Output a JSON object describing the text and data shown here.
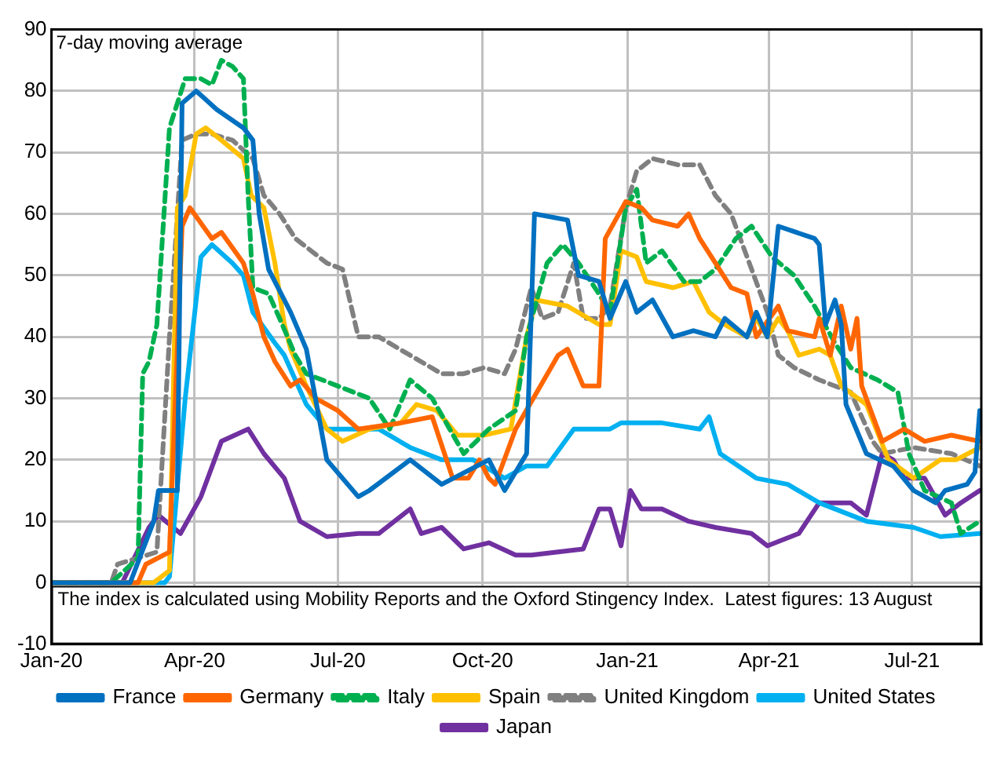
{
  "chart_data": {
    "type": "line",
    "annotations": [
      "7-day moving average",
      "The index is calculated using Mobility Reports and the Oxford Stingency Index.  Latest figures: 13 August"
    ],
    "xlim": [
      "2020-01-01",
      "2021-08-14"
    ],
    "xticks": [
      {
        "value": "2020-01-01",
        "label": "Jan-20"
      },
      {
        "value": "2020-04-01",
        "label": "Apr-20"
      },
      {
        "value": "2020-07-01",
        "label": "Jul-20"
      },
      {
        "value": "2020-10-01",
        "label": "Oct-20"
      },
      {
        "value": "2021-01-01",
        "label": "Jan-21"
      },
      {
        "value": "2021-04-01",
        "label": "Apr-21"
      },
      {
        "value": "2021-07-01",
        "label": "Jul-21"
      }
    ],
    "ylim": [
      -10,
      90
    ],
    "yticks": [
      -10,
      0,
      10,
      20,
      30,
      40,
      50,
      60,
      70,
      80,
      90
    ],
    "grid": true,
    "legend": "bottom",
    "marker": "none",
    "series": [
      {
        "name": "France",
        "color": "#0070c0",
        "line_style": "solid",
        "x": [
          "2020-01-01",
          "2020-02-20",
          "2020-03-06",
          "2020-03-09",
          "2020-03-21",
          "2020-03-24",
          "2020-04-02",
          "2020-04-15",
          "2020-05-02",
          "2020-05-08",
          "2020-05-12",
          "2020-05-18",
          "2020-06-01",
          "2020-06-11",
          "2020-06-24",
          "2020-07-14",
          "2020-07-21",
          "2020-08-16",
          "2020-09-05",
          "2020-10-05",
          "2020-10-15",
          "2020-10-29",
          "2020-11-03",
          "2020-11-24",
          "2020-12-01",
          "2020-12-14",
          "2020-12-21",
          "2020-12-31",
          "2021-01-07",
          "2021-01-17",
          "2021-01-30",
          "2021-02-12",
          "2021-02-26",
          "2021-03-04",
          "2021-03-18",
          "2021-03-24",
          "2021-03-31",
          "2021-04-07",
          "2021-04-30",
          "2021-05-03",
          "2021-05-07",
          "2021-05-13",
          "2021-05-17",
          "2021-05-20",
          "2021-06-02",
          "2021-06-19",
          "2021-07-02",
          "2021-07-16",
          "2021-07-22",
          "2021-08-05",
          "2021-08-10",
          "2021-08-13"
        ],
        "values": [
          0,
          0,
          10,
          15,
          15,
          78,
          80,
          77,
          74,
          72,
          60,
          51,
          44,
          38,
          20,
          14,
          15,
          20,
          16,
          20,
          15,
          21,
          60,
          59,
          50,
          49,
          43,
          49,
          44,
          46,
          40,
          41,
          40,
          43,
          40,
          44,
          40,
          58,
          56,
          55,
          42,
          46,
          42,
          29,
          21,
          19,
          15,
          13,
          15,
          16,
          18,
          28
        ]
      },
      {
        "name": "Germany",
        "color": "#ff6600",
        "line_style": "solid",
        "x": [
          "2020-01-01",
          "2020-02-25",
          "2020-03-01",
          "2020-03-16",
          "2020-03-24",
          "2020-03-29",
          "2020-04-12",
          "2020-04-18",
          "2020-05-02",
          "2020-05-08",
          "2020-05-15",
          "2020-05-22",
          "2020-06-01",
          "2020-06-07",
          "2020-06-17",
          "2020-07-01",
          "2020-07-14",
          "2020-08-10",
          "2020-08-30",
          "2020-09-12",
          "2020-09-22",
          "2020-09-29",
          "2020-10-05",
          "2020-10-09",
          "2020-10-22",
          "2020-11-18",
          "2020-11-24",
          "2020-12-04",
          "2020-12-14",
          "2020-12-18",
          "2020-12-31",
          "2021-01-10",
          "2021-01-17",
          "2021-02-02",
          "2021-02-09",
          "2021-02-16",
          "2021-02-26",
          "2021-03-08",
          "2021-03-18",
          "2021-03-24",
          "2021-04-07",
          "2021-04-13",
          "2021-04-30",
          "2021-05-03",
          "2021-05-10",
          "2021-05-17",
          "2021-05-23",
          "2021-05-27",
          "2021-05-30",
          "2021-06-12",
          "2021-06-26",
          "2021-07-09",
          "2021-07-26",
          "2021-08-13"
        ],
        "values": [
          0,
          0,
          3,
          5,
          58,
          61,
          56,
          57,
          52,
          47,
          40,
          36,
          32,
          33,
          30,
          28,
          25,
          26,
          27,
          17,
          17,
          20,
          17,
          16,
          25,
          37,
          38,
          32,
          32,
          56,
          62,
          61,
          59,
          58,
          60,
          56,
          52,
          48,
          47,
          40,
          45,
          41,
          40,
          43,
          37,
          45,
          38,
          43,
          32,
          23,
          25,
          23,
          24,
          23
        ]
      },
      {
        "name": "Italy",
        "color": "#00b050",
        "line_style": "dashed",
        "x": [
          "2020-01-01",
          "2020-02-08",
          "2020-02-25",
          "2020-02-28",
          "2020-03-03",
          "2020-03-08",
          "2020-03-16",
          "2020-03-26",
          "2020-04-05",
          "2020-04-12",
          "2020-04-18",
          "2020-04-25",
          "2020-05-02",
          "2020-05-05",
          "2020-05-08",
          "2020-05-18",
          "2020-05-25",
          "2020-06-04",
          "2020-06-11",
          "2020-07-01",
          "2020-07-21",
          "2020-08-03",
          "2020-08-16",
          "2020-08-30",
          "2020-09-19",
          "2020-10-05",
          "2020-10-22",
          "2020-10-29",
          "2020-11-11",
          "2020-11-21",
          "2020-12-01",
          "2020-12-14",
          "2020-12-21",
          "2020-12-31",
          "2021-01-07",
          "2021-01-13",
          "2021-01-23",
          "2021-02-06",
          "2021-02-16",
          "2021-02-26",
          "2021-03-11",
          "2021-03-21",
          "2021-04-03",
          "2021-04-17",
          "2021-04-30",
          "2021-05-13",
          "2021-05-23",
          "2021-06-09",
          "2021-06-22",
          "2021-06-29",
          "2021-07-09",
          "2021-07-26",
          "2021-08-01",
          "2021-08-13"
        ],
        "values": [
          0,
          0,
          4,
          34,
          36,
          42,
          74,
          82,
          82,
          81,
          85,
          84,
          82,
          63,
          48,
          47,
          43,
          37,
          34,
          32,
          30,
          25,
          33,
          30,
          21,
          25,
          28,
          40,
          52,
          55,
          52,
          47,
          44,
          61,
          64,
          52,
          54,
          49,
          49,
          51,
          56,
          58,
          53,
          50,
          45,
          39,
          35,
          33,
          31,
          21,
          15,
          13,
          8,
          10
        ]
      },
      {
        "name": "Spain",
        "color": "#ffc000",
        "line_style": "solid",
        "x": [
          "2020-01-01",
          "2020-03-06",
          "2020-03-16",
          "2020-03-21",
          "2020-03-26",
          "2020-04-02",
          "2020-04-08",
          "2020-04-18",
          "2020-05-02",
          "2020-05-07",
          "2020-05-15",
          "2020-05-22",
          "2020-05-28",
          "2020-06-01",
          "2020-06-11",
          "2020-06-24",
          "2020-07-04",
          "2020-07-21",
          "2020-08-10",
          "2020-08-20",
          "2020-09-02",
          "2020-09-15",
          "2020-10-02",
          "2020-10-19",
          "2020-10-29",
          "2020-11-04",
          "2020-11-24",
          "2020-12-14",
          "2020-12-21",
          "2020-12-28",
          "2021-01-07",
          "2021-01-13",
          "2021-01-30",
          "2021-02-12",
          "2021-02-22",
          "2021-03-04",
          "2021-03-18",
          "2021-03-24",
          "2021-03-31",
          "2021-04-07",
          "2021-04-13",
          "2021-04-20",
          "2021-05-03",
          "2021-05-10",
          "2021-05-17",
          "2021-06-02",
          "2021-06-16",
          "2021-07-02",
          "2021-07-19",
          "2021-07-29",
          "2021-08-13"
        ],
        "values": [
          0,
          0,
          2,
          61,
          63,
          73,
          74,
          72,
          69,
          63,
          61,
          52,
          42,
          38,
          32,
          25,
          23,
          25,
          26,
          29,
          28,
          24,
          24,
          25,
          40,
          46,
          45,
          42,
          42,
          54,
          53,
          49,
          48,
          49,
          44,
          42,
          40,
          43,
          40,
          43,
          41,
          37,
          38,
          37,
          32,
          29,
          20,
          17,
          20,
          20,
          22
        ]
      },
      {
        "name": "United Kingdom",
        "color": "#808080",
        "line_style": "dashed",
        "x": [
          "2020-01-01",
          "2020-02-08",
          "2020-02-12",
          "2020-03-08",
          "2020-03-16",
          "2020-03-24",
          "2020-04-02",
          "2020-04-12",
          "2020-04-25",
          "2020-05-08",
          "2020-05-15",
          "2020-05-25",
          "2020-06-04",
          "2020-06-24",
          "2020-07-04",
          "2020-07-14",
          "2020-07-27",
          "2020-08-16",
          "2020-09-05",
          "2020-09-19",
          "2020-10-02",
          "2020-10-15",
          "2020-10-22",
          "2020-11-01",
          "2020-11-08",
          "2020-11-18",
          "2020-11-28",
          "2020-12-04",
          "2020-12-14",
          "2020-12-21",
          "2020-12-31",
          "2021-01-07",
          "2021-01-17",
          "2021-02-02",
          "2021-02-16",
          "2021-02-26",
          "2021-03-08",
          "2021-03-21",
          "2021-03-31",
          "2021-04-07",
          "2021-04-17",
          "2021-05-03",
          "2021-05-23",
          "2021-06-06",
          "2021-06-12",
          "2021-07-02",
          "2021-07-26",
          "2021-08-13"
        ],
        "values": [
          0,
          0,
          3,
          5,
          40,
          72,
          73,
          73,
          72,
          69,
          63,
          60,
          56,
          52,
          51,
          40,
          40,
          37,
          34,
          34,
          35,
          34,
          38,
          48,
          43,
          44,
          52,
          43,
          43,
          45,
          61,
          67,
          69,
          68,
          68,
          63,
          60,
          51,
          44,
          37,
          35,
          33,
          31,
          23,
          21,
          22,
          21,
          19
        ]
      },
      {
        "name": "United States",
        "color": "#00b0f0",
        "line_style": "solid",
        "x": [
          "2020-01-01",
          "2020-03-13",
          "2020-03-16",
          "2020-03-26",
          "2020-04-05",
          "2020-04-12",
          "2020-04-25",
          "2020-05-02",
          "2020-05-08",
          "2020-05-22",
          "2020-05-28",
          "2020-06-11",
          "2020-06-24",
          "2020-07-07",
          "2020-07-27",
          "2020-08-16",
          "2020-09-05",
          "2020-09-25",
          "2020-10-15",
          "2020-10-29",
          "2020-11-11",
          "2020-11-28",
          "2020-12-21",
          "2020-12-28",
          "2021-01-23",
          "2021-02-16",
          "2021-02-22",
          "2021-03-01",
          "2021-03-24",
          "2021-04-13",
          "2021-05-03",
          "2021-06-02",
          "2021-07-02",
          "2021-07-19",
          "2021-08-13"
        ],
        "values": [
          0,
          0,
          1,
          30,
          53,
          55,
          52,
          50,
          44,
          39,
          37,
          29,
          25,
          25,
          25,
          22,
          20,
          20,
          17,
          19,
          19,
          25,
          25,
          26,
          26,
          25,
          27,
          21,
          17,
          16,
          13,
          10,
          9,
          7.5,
          8
        ]
      },
      {
        "name": "Japan",
        "color": "#7030a0",
        "line_style": "solid",
        "x": [
          "2020-01-01",
          "2020-02-15",
          "2020-03-03",
          "2020-03-09",
          "2020-03-23",
          "2020-04-05",
          "2020-04-18",
          "2020-05-05",
          "2020-05-15",
          "2020-05-28",
          "2020-06-07",
          "2020-06-24",
          "2020-07-14",
          "2020-07-27",
          "2020-08-16",
          "2020-08-23",
          "2020-09-05",
          "2020-09-19",
          "2020-10-05",
          "2020-10-22",
          "2020-11-01",
          "2020-12-04",
          "2020-12-14",
          "2020-12-21",
          "2020-12-28",
          "2021-01-03",
          "2021-01-10",
          "2021-01-23",
          "2021-02-09",
          "2021-02-26",
          "2021-03-21",
          "2021-03-31",
          "2021-04-20",
          "2021-05-03",
          "2021-05-23",
          "2021-06-02",
          "2021-06-12",
          "2021-06-19",
          "2021-06-26",
          "2021-07-09",
          "2021-07-22",
          "2021-08-01",
          "2021-08-13"
        ],
        "values": [
          0,
          0,
          9,
          11,
          8,
          14,
          23,
          25,
          21,
          17,
          10,
          7.5,
          8,
          8,
          12,
          8,
          9,
          5.5,
          6.5,
          4.5,
          4.5,
          5.5,
          12,
          12,
          6,
          15,
          12,
          12,
          10,
          9,
          8,
          6,
          8,
          13,
          13,
          11,
          21,
          20,
          17,
          17,
          11,
          13,
          15
        ]
      }
    ]
  }
}
